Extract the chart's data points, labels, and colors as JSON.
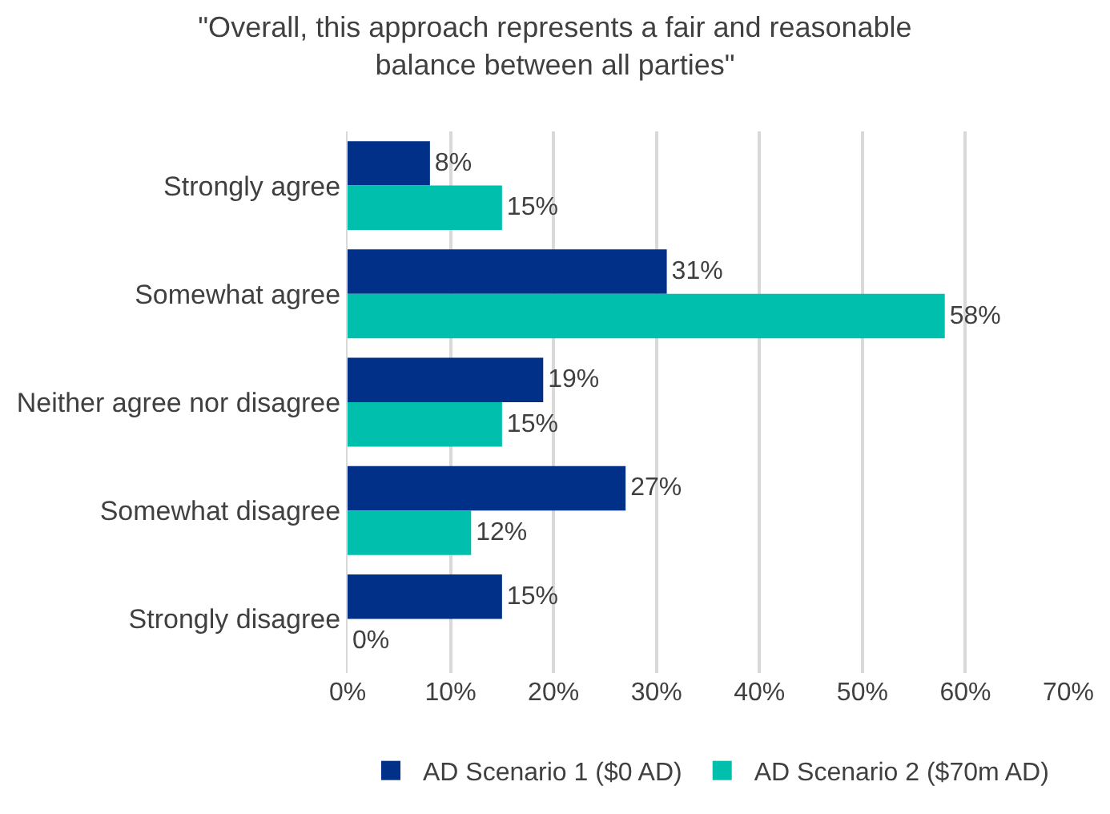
{
  "chart_data": {
    "type": "bar",
    "orientation": "horizontal",
    "title": "\"Overall, this approach represents a fair and reasonable balance between all parties\"",
    "categories": [
      "Strongly agree",
      "Somewhat agree",
      "Neither agree nor disagree",
      "Somewhat disagree",
      "Strongly disagree"
    ],
    "series": [
      {
        "name": "AD Scenario 1 ($0 AD)",
        "color": "#003087",
        "values": [
          8,
          31,
          19,
          27,
          15
        ],
        "value_labels": [
          "8%",
          "31%",
          "19%",
          "27%",
          "15%"
        ]
      },
      {
        "name": "AD Scenario 2 ($70m AD)",
        "color": "#00bfad",
        "values": [
          15,
          58,
          15,
          12,
          0
        ],
        "value_labels": [
          "15%",
          "58%",
          "15%",
          "12%",
          "0%"
        ]
      }
    ],
    "xlim": [
      0,
      70
    ],
    "xticks": [
      {
        "value": 0,
        "label": "0%"
      },
      {
        "value": 10,
        "label": "10%"
      },
      {
        "value": 20,
        "label": "20%"
      },
      {
        "value": 30,
        "label": "30%"
      },
      {
        "value": 40,
        "label": "40%"
      },
      {
        "value": 50,
        "label": "50%"
      },
      {
        "value": 60,
        "label": "60%"
      },
      {
        "value": 70,
        "label": "70%"
      }
    ],
    "grid": "x",
    "legend": "bottom"
  }
}
